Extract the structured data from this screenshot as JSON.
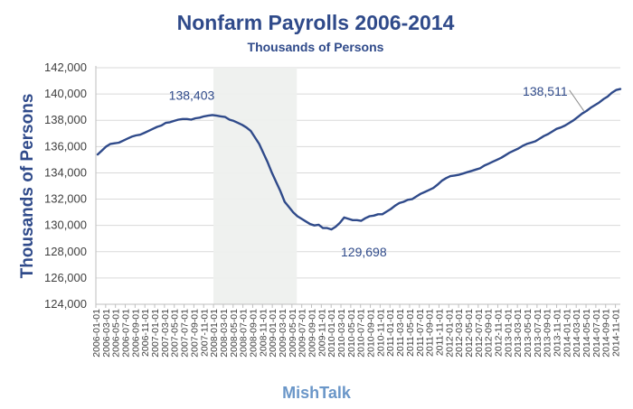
{
  "chart_data": {
    "type": "line",
    "title": "Nonfarm Payrolls 2006-2014",
    "subtitle": "Thousands of Persons",
    "ylabel": "Thousands of  Persons",
    "xlabel": "",
    "source": "MishTalk",
    "ylim": [
      124000,
      142000
    ],
    "y_ticks": [
      124000,
      126000,
      128000,
      130000,
      132000,
      134000,
      136000,
      138000,
      140000,
      142000
    ],
    "y_tick_labels": [
      "124,000",
      "126,000",
      "128,000",
      "130,000",
      "132,000",
      "134,000",
      "136,000",
      "138,000",
      "140,000",
      "142,000"
    ],
    "grid": "horizontal",
    "shaded_region": {
      "start": "2008-01-01",
      "end": "2009-06-01"
    },
    "x_tick_labels": [
      "2006-01-01",
      "2006-03-01",
      "2006-05-01",
      "2006-07-01",
      "2006-09-01",
      "2006-11-01",
      "2007-01-01",
      "2007-03-01",
      "2007-05-01",
      "2007-07-01",
      "2007-09-01",
      "2007-11-01",
      "2008-01-01",
      "2008-03-01",
      "2008-05-01",
      "2008-07-01",
      "2008-09-01",
      "2008-11-01",
      "2009-01-01",
      "2009-03-01",
      "2009-05-01",
      "2009-07-01",
      "2009-09-01",
      "2009-11-01",
      "2010-01-01",
      "2010-03-01",
      "2010-05-01",
      "2010-07-01",
      "2010-09-01",
      "2010-11-01",
      "2011-01-01",
      "2011-03-01",
      "2011-05-01",
      "2011-07-01",
      "2011-09-01",
      "2011-11-01",
      "2012-01-01",
      "2012-03-01",
      "2012-05-01",
      "2012-07-01",
      "2012-09-01",
      "2012-11-01",
      "2013-01-01",
      "2013-03-01",
      "2013-05-01",
      "2013-07-01",
      "2013-09-01",
      "2013-11-01",
      "2014-01-01",
      "2014-03-01",
      "2014-05-01",
      "2014-07-01",
      "2014-09-01",
      "2014-11-01"
    ],
    "series": [
      {
        "color": "#2f4a8a",
        "values": [
          135400,
          135700,
          136000,
          136200,
          136250,
          136300,
          136450,
          136600,
          136750,
          136850,
          136900,
          137050,
          137200,
          137350,
          137500,
          137600,
          137800,
          137850,
          137950,
          138050,
          138100,
          138100,
          138050,
          138150,
          138200,
          138300,
          138350,
          138403,
          138350,
          138300,
          138250,
          138050,
          137950,
          137800,
          137650,
          137450,
          137200,
          136700,
          136200,
          135500,
          134800,
          134000,
          133300,
          132600,
          131800,
          131400,
          131000,
          130700,
          130500,
          130300,
          130100,
          130000,
          130050,
          129800,
          129800,
          129698,
          129900,
          130200,
          130600,
          130500,
          130400,
          130400,
          130350,
          130550,
          130700,
          130750,
          130850,
          130850,
          131050,
          131250,
          131500,
          131700,
          131800,
          131950,
          132000,
          132200,
          132400,
          132550,
          132700,
          132850,
          133100,
          133400,
          133600,
          133750,
          133800,
          133850,
          133950,
          134050,
          134150,
          134250,
          134350,
          134550,
          134700,
          134850,
          135000,
          135150,
          135350,
          135550,
          135700,
          135850,
          136050,
          136200,
          136300,
          136400,
          136600,
          136800,
          136950,
          137150,
          137350,
          137450,
          137600,
          137800,
          138000,
          138250,
          138511,
          138700,
          138950,
          139150,
          139350,
          139600,
          139800,
          140100,
          140300,
          140380
        ]
      }
    ],
    "annotations": [
      {
        "text": "138,403",
        "x": "2007-12-01",
        "y": 138403
      },
      {
        "text": "129,698",
        "x": "2010-03-01",
        "y": 129698
      },
      {
        "text": "138,511",
        "x": "2014-04-01",
        "y": 138511
      }
    ]
  }
}
